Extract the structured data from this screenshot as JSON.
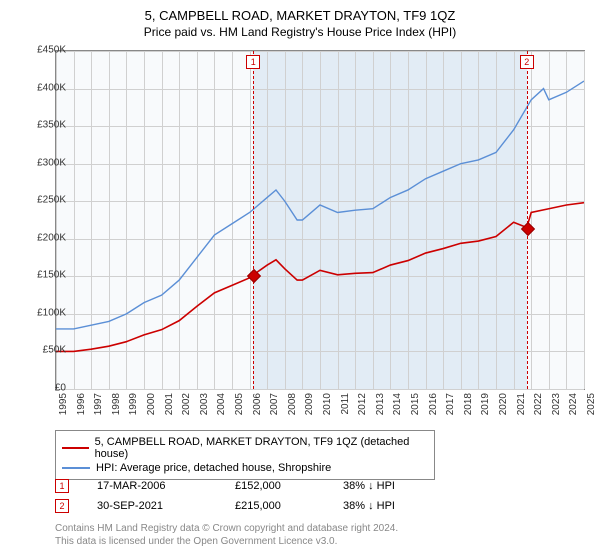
{
  "title": "5, CAMPBELL ROAD, MARKET DRAYTON, TF9 1QZ",
  "subtitle": "Price paid vs. HM Land Registry's House Price Index (HPI)",
  "chart": {
    "type": "line",
    "plot_bg": "#f8fafc",
    "shade_bg": "#e2ecf5",
    "grid_color": "#d0d0d0",
    "border_color": "#888888",
    "ylim": [
      0,
      450000
    ],
    "ytick_step": 50000,
    "yticks": [
      "£0",
      "£50K",
      "£100K",
      "£150K",
      "£200K",
      "£250K",
      "£300K",
      "£350K",
      "£400K",
      "£450K"
    ],
    "xyears": [
      1995,
      1996,
      1997,
      1998,
      1999,
      2000,
      2001,
      2002,
      2003,
      2004,
      2005,
      2006,
      2007,
      2008,
      2009,
      2010,
      2011,
      2012,
      2013,
      2014,
      2015,
      2016,
      2017,
      2018,
      2019,
      2020,
      2021,
      2022,
      2023,
      2024,
      2025
    ],
    "shade_start_year": 2006.21,
    "shade_end_year": 2021.75,
    "series": {
      "hpi": {
        "color": "#5b8fd6",
        "width": 1.4,
        "label": "HPI: Average price, detached house, Shropshire",
        "points": [
          [
            1995,
            80000
          ],
          [
            1996,
            80000
          ],
          [
            1997,
            85000
          ],
          [
            1998,
            90000
          ],
          [
            1999,
            100000
          ],
          [
            2000,
            115000
          ],
          [
            2001,
            125000
          ],
          [
            2002,
            145000
          ],
          [
            2003,
            175000
          ],
          [
            2004,
            205000
          ],
          [
            2005,
            220000
          ],
          [
            2006,
            235000
          ],
          [
            2007,
            255000
          ],
          [
            2007.5,
            265000
          ],
          [
            2008,
            250000
          ],
          [
            2008.7,
            225000
          ],
          [
            2009,
            225000
          ],
          [
            2010,
            245000
          ],
          [
            2011,
            235000
          ],
          [
            2012,
            238000
          ],
          [
            2013,
            240000
          ],
          [
            2014,
            255000
          ],
          [
            2015,
            265000
          ],
          [
            2016,
            280000
          ],
          [
            2017,
            290000
          ],
          [
            2018,
            300000
          ],
          [
            2019,
            305000
          ],
          [
            2020,
            315000
          ],
          [
            2021,
            345000
          ],
          [
            2022,
            385000
          ],
          [
            2022.7,
            400000
          ],
          [
            2023,
            385000
          ],
          [
            2024,
            395000
          ],
          [
            2025,
            410000
          ]
        ]
      },
      "property": {
        "color": "#cc0000",
        "width": 1.6,
        "label": "5, CAMPBELL ROAD, MARKET DRAYTON, TF9 1QZ (detached house)",
        "points": [
          [
            1995,
            50000
          ],
          [
            1996,
            50000
          ],
          [
            1997,
            53000
          ],
          [
            1998,
            57000
          ],
          [
            1999,
            63000
          ],
          [
            2000,
            72000
          ],
          [
            2001,
            79000
          ],
          [
            2002,
            91000
          ],
          [
            2003,
            110000
          ],
          [
            2004,
            128000
          ],
          [
            2005,
            138000
          ],
          [
            2006,
            148000
          ],
          [
            2006.21,
            152000
          ],
          [
            2007,
            165000
          ],
          [
            2007.5,
            172000
          ],
          [
            2008,
            160000
          ],
          [
            2008.7,
            145000
          ],
          [
            2009,
            145000
          ],
          [
            2010,
            158000
          ],
          [
            2011,
            152000
          ],
          [
            2012,
            154000
          ],
          [
            2013,
            155000
          ],
          [
            2014,
            165000
          ],
          [
            2015,
            171000
          ],
          [
            2016,
            181000
          ],
          [
            2017,
            187000
          ],
          [
            2018,
            194000
          ],
          [
            2019,
            197000
          ],
          [
            2020,
            203000
          ],
          [
            2021,
            222000
          ],
          [
            2021.75,
            215000
          ],
          [
            2022,
            235000
          ],
          [
            2023,
            240000
          ],
          [
            2024,
            245000
          ],
          [
            2025,
            248000
          ]
        ]
      }
    },
    "markers": [
      {
        "year": 2006.21,
        "value": 152000
      },
      {
        "year": 2021.75,
        "value": 215000
      }
    ],
    "reflines": [
      {
        "year": 2006.21,
        "label": "1"
      },
      {
        "year": 2021.75,
        "label": "2"
      }
    ]
  },
  "legend": {
    "items": [
      {
        "color": "#cc0000",
        "label_key": "chart.series.property.label"
      },
      {
        "color": "#5b8fd6",
        "label_key": "chart.series.hpi.label"
      }
    ]
  },
  "transactions": [
    {
      "n": "1",
      "date": "17-MAR-2006",
      "price": "£152,000",
      "delta": "38% ↓ HPI"
    },
    {
      "n": "2",
      "date": "30-SEP-2021",
      "price": "£215,000",
      "delta": "38% ↓ HPI"
    }
  ],
  "footnote_l1": "Contains HM Land Registry data © Crown copyright and database right 2024.",
  "footnote_l2": "This data is licensed under the Open Government Licence v3.0."
}
